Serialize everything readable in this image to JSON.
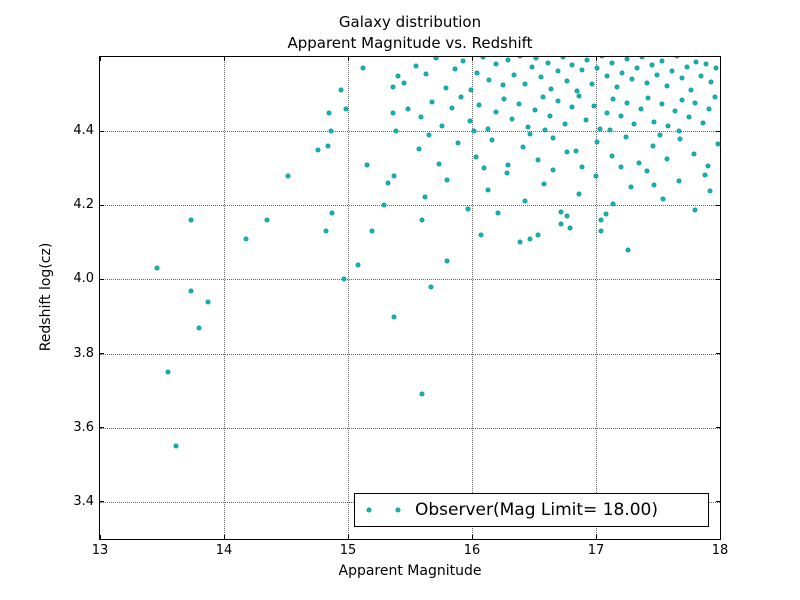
{
  "title": {
    "line1": "Galaxy distribution",
    "line2": "Apparent Magnitude vs. Redshift"
  },
  "axes": {
    "xlabel": "Apparent Magnitude",
    "ylabel": "Redshift log(cz)"
  },
  "legend": {
    "label": "Observer(Mag Limit= 18.00)"
  },
  "colors": {
    "marker_fill": "#15b5b5",
    "marker_edge": "#0c9e9e",
    "grid": "#666666",
    "frame": "#000000",
    "background": "#ffffff"
  },
  "chart_data": {
    "type": "scatter",
    "title": "Galaxy distribution\nApparent Magnitude vs. Redshift",
    "xlabel": "Apparent Magnitude",
    "ylabel": "Redshift log(cz)",
    "xlim": [
      13,
      18
    ],
    "ylim": [
      3.3,
      4.6
    ],
    "x_ticks": [
      13,
      14,
      15,
      16,
      17,
      18
    ],
    "x_tick_labels": [
      "13",
      "14",
      "15",
      "16",
      "17",
      "18"
    ],
    "y_ticks": [
      3.4,
      3.6,
      3.8,
      4.0,
      4.2,
      4.4
    ],
    "y_tick_labels": [
      "3.4",
      "3.6",
      "3.8",
      "4.0",
      "4.2",
      "4.4"
    ],
    "grid": true,
    "grid_style": "dotted",
    "legend_position": "lower right",
    "series": [
      {
        "name": "Observer(Mag Limit= 18.00)",
        "marker": "circle",
        "points": [
          [
            13.46,
            4.03
          ],
          [
            13.55,
            3.75
          ],
          [
            13.61,
            3.55
          ],
          [
            13.73,
            4.16
          ],
          [
            13.73,
            3.97
          ],
          [
            13.8,
            3.87
          ],
          [
            13.87,
            3.94
          ],
          [
            14.18,
            4.11
          ],
          [
            14.35,
            4.16
          ],
          [
            14.52,
            4.28
          ],
          [
            14.76,
            4.35
          ],
          [
            14.82,
            4.13
          ],
          [
            14.84,
            4.36
          ],
          [
            14.85,
            4.45
          ],
          [
            14.86,
            4.4
          ],
          [
            14.87,
            4.18
          ],
          [
            14.94,
            4.51
          ],
          [
            14.97,
            4.0
          ],
          [
            14.98,
            4.46
          ],
          [
            15.08,
            4.04
          ],
          [
            15.12,
            4.57
          ],
          [
            15.15,
            4.31
          ],
          [
            15.19,
            4.13
          ],
          [
            15.29,
            4.2
          ],
          [
            15.32,
            4.26
          ],
          [
            15.36,
            4.52
          ],
          [
            15.36,
            4.45
          ],
          [
            15.37,
            4.28
          ],
          [
            15.37,
            3.9
          ],
          [
            15.39,
            4.4
          ],
          [
            15.4,
            4.55
          ],
          [
            15.45,
            4.53
          ],
          [
            15.48,
            4.46
          ],
          [
            15.6,
            4.16
          ],
          [
            15.6,
            3.69
          ],
          [
            15.67,
            3.98
          ],
          [
            15.8,
            4.05
          ],
          [
            16.07,
            4.12
          ],
          [
            16.39,
            4.1
          ],
          [
            16.47,
            4.11
          ],
          [
            16.53,
            4.12
          ],
          [
            16.72,
            4.15
          ],
          [
            16.77,
            4.17
          ],
          [
            16.79,
            4.14
          ],
          [
            17.04,
            4.16
          ],
          [
            17.04,
            4.13
          ],
          [
            17.26,
            4.08
          ],
          [
            15.55,
            4.575
          ],
          [
            15.63,
            4.553
          ],
          [
            15.71,
            4.598
          ],
          [
            15.79,
            4.517
          ],
          [
            15.86,
            4.568
          ],
          [
            15.93,
            4.588
          ],
          [
            15.99,
            4.512
          ],
          [
            16.04,
            4.558
          ],
          [
            16.09,
            4.601
          ],
          [
            16.14,
            4.537
          ],
          [
            16.19,
            4.58
          ],
          [
            16.25,
            4.524
          ],
          [
            16.29,
            4.592
          ],
          [
            16.34,
            4.551
          ],
          [
            16.39,
            4.603
          ],
          [
            16.43,
            4.528
          ],
          [
            16.48,
            4.572
          ],
          [
            16.52,
            4.597
          ],
          [
            16.56,
            4.546
          ],
          [
            16.61,
            4.583
          ],
          [
            16.64,
            4.515
          ],
          [
            16.69,
            4.562
          ],
          [
            16.73,
            4.6
          ],
          [
            16.77,
            4.535
          ],
          [
            16.81,
            4.578
          ],
          [
            16.85,
            4.508
          ],
          [
            16.89,
            4.565
          ],
          [
            16.93,
            4.591
          ],
          [
            16.97,
            4.527
          ],
          [
            17.01,
            4.571
          ],
          [
            17.05,
            4.602
          ],
          [
            17.09,
            4.548
          ],
          [
            17.13,
            4.584
          ],
          [
            17.17,
            4.519
          ],
          [
            17.21,
            4.557
          ],
          [
            17.25,
            4.594
          ],
          [
            17.29,
            4.541
          ],
          [
            17.33,
            4.569
          ],
          [
            17.37,
            4.6
          ],
          [
            17.41,
            4.531
          ],
          [
            17.45,
            4.579
          ],
          [
            17.49,
            4.552
          ],
          [
            17.53,
            4.589
          ],
          [
            17.57,
            4.521
          ],
          [
            17.61,
            4.563
          ],
          [
            17.65,
            4.604
          ],
          [
            17.69,
            4.543
          ],
          [
            17.73,
            4.574
          ],
          [
            17.77,
            4.511
          ],
          [
            17.81,
            4.586
          ],
          [
            17.85,
            4.549
          ],
          [
            17.89,
            4.581
          ],
          [
            17.93,
            4.533
          ],
          [
            17.97,
            4.57
          ],
          [
            15.59,
            4.437
          ],
          [
            15.68,
            4.478
          ],
          [
            15.76,
            4.415
          ],
          [
            15.84,
            4.462
          ],
          [
            15.91,
            4.491
          ],
          [
            15.98,
            4.428
          ],
          [
            16.06,
            4.47
          ],
          [
            16.13,
            4.407
          ],
          [
            16.19,
            4.452
          ],
          [
            16.26,
            4.488
          ],
          [
            16.32,
            4.433
          ],
          [
            16.38,
            4.473
          ],
          [
            16.45,
            4.41
          ],
          [
            16.51,
            4.458
          ],
          [
            16.57,
            4.493
          ],
          [
            16.63,
            4.44
          ],
          [
            16.69,
            4.481
          ],
          [
            16.75,
            4.418
          ],
          [
            16.81,
            4.464
          ],
          [
            16.86,
            4.495
          ],
          [
            16.92,
            4.431
          ],
          [
            16.98,
            4.468
          ],
          [
            17.03,
            4.405
          ],
          [
            17.09,
            4.449
          ],
          [
            17.14,
            4.486
          ],
          [
            17.2,
            4.442
          ],
          [
            17.25,
            4.477
          ],
          [
            17.31,
            4.42
          ],
          [
            17.36,
            4.461
          ],
          [
            17.42,
            4.49
          ],
          [
            17.47,
            4.426
          ],
          [
            17.53,
            4.472
          ],
          [
            17.58,
            4.413
          ],
          [
            17.64,
            4.455
          ],
          [
            17.69,
            4.484
          ],
          [
            17.75,
            4.438
          ],
          [
            17.8,
            4.475
          ],
          [
            17.86,
            4.422
          ],
          [
            17.91,
            4.459
          ],
          [
            17.96,
            4.492
          ],
          [
            16.02,
            4.401
          ],
          [
            16.59,
            4.403
          ],
          [
            17.11,
            4.402
          ],
          [
            17.67,
            4.4
          ],
          [
            15.57,
            4.352
          ],
          [
            15.73,
            4.312
          ],
          [
            15.89,
            4.368
          ],
          [
            16.03,
            4.331
          ],
          [
            16.16,
            4.377
          ],
          [
            16.29,
            4.309
          ],
          [
            16.41,
            4.356
          ],
          [
            16.53,
            4.322
          ],
          [
            16.65,
            4.381
          ],
          [
            16.77,
            4.343
          ],
          [
            16.89,
            4.303
          ],
          [
            17.01,
            4.371
          ],
          [
            17.13,
            4.334
          ],
          [
            17.24,
            4.384
          ],
          [
            17.35,
            4.315
          ],
          [
            17.46,
            4.359
          ],
          [
            17.57,
            4.326
          ],
          [
            17.68,
            4.378
          ],
          [
            17.79,
            4.338
          ],
          [
            17.9,
            4.306
          ],
          [
            17.98,
            4.366
          ],
          [
            16.1,
            4.301
          ],
          [
            16.47,
            4.392
          ],
          [
            16.84,
            4.347
          ],
          [
            17.2,
            4.304
          ],
          [
            17.52,
            4.39
          ],
          [
            15.65,
            4.39
          ],
          [
            15.62,
            4.222
          ],
          [
            15.8,
            4.268
          ],
          [
            15.97,
            4.19
          ],
          [
            16.13,
            4.241
          ],
          [
            16.28,
            4.287
          ],
          [
            16.43,
            4.212
          ],
          [
            16.58,
            4.258
          ],
          [
            16.72,
            4.182
          ],
          [
            16.86,
            4.231
          ],
          [
            17.0,
            4.278
          ],
          [
            17.14,
            4.203
          ],
          [
            17.28,
            4.249
          ],
          [
            17.41,
            4.292
          ],
          [
            17.54,
            4.218
          ],
          [
            17.67,
            4.266
          ],
          [
            17.8,
            4.187
          ],
          [
            17.92,
            4.238
          ],
          [
            16.21,
            4.178
          ],
          [
            16.65,
            4.295
          ],
          [
            17.08,
            4.176
          ],
          [
            17.47,
            4.255
          ],
          [
            17.88,
            4.283
          ]
        ]
      }
    ]
  }
}
